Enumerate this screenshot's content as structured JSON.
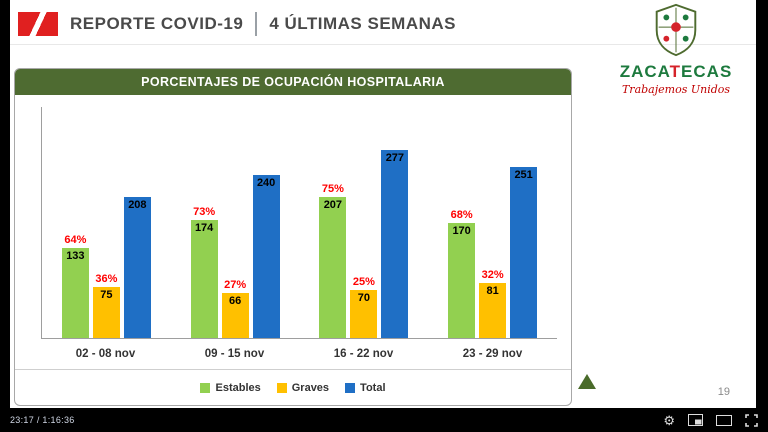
{
  "header": {
    "title": "REPORTE COVID-19",
    "subtitle": "4 ÚLTIMAS SEMANAS"
  },
  "logo": {
    "word": "ZACATECAS",
    "red_letter_index": 4,
    "green_color": "#1d7a3e",
    "red_color": "#d5232a",
    "slogan": "Trabajemos Unidos"
  },
  "slide": {
    "page_number": "19"
  },
  "chart_data": {
    "type": "bar",
    "title": "PORCENTAJES DE OCUPACIÓN HOSPITALARIA",
    "categories": [
      "02 - 08 nov",
      "09 - 15 nov",
      "16 - 22 nov",
      "23 - 29 nov"
    ],
    "series": [
      {
        "name": "Estables",
        "color": "#92d050",
        "values": [
          133,
          174,
          207,
          170
        ],
        "percent_labels": [
          "64%",
          "73%",
          "75%",
          "68%"
        ]
      },
      {
        "name": "Graves",
        "color": "#ffc000",
        "values": [
          75,
          66,
          70,
          81
        ],
        "percent_labels": [
          "36%",
          "27%",
          "25%",
          "32%"
        ]
      },
      {
        "name": "Total",
        "color": "#1f6fc5",
        "values": [
          208,
          240,
          277,
          251
        ],
        "percent_labels": null
      }
    ],
    "percent_label_color": "#ff0000",
    "ylim": [
      0,
      340
    ],
    "grid": false,
    "legend_position": "bottom",
    "value_labels_position": "inside-end"
  },
  "player": {
    "time": "23:17 / 1:16:36",
    "icons": [
      "settings",
      "miniplayer",
      "theater-mode",
      "fullscreen"
    ]
  },
  "colors": {
    "accent_red": "#e02020",
    "panel_green": "#4e6b31",
    "title_gray": "#4a4a4a"
  }
}
